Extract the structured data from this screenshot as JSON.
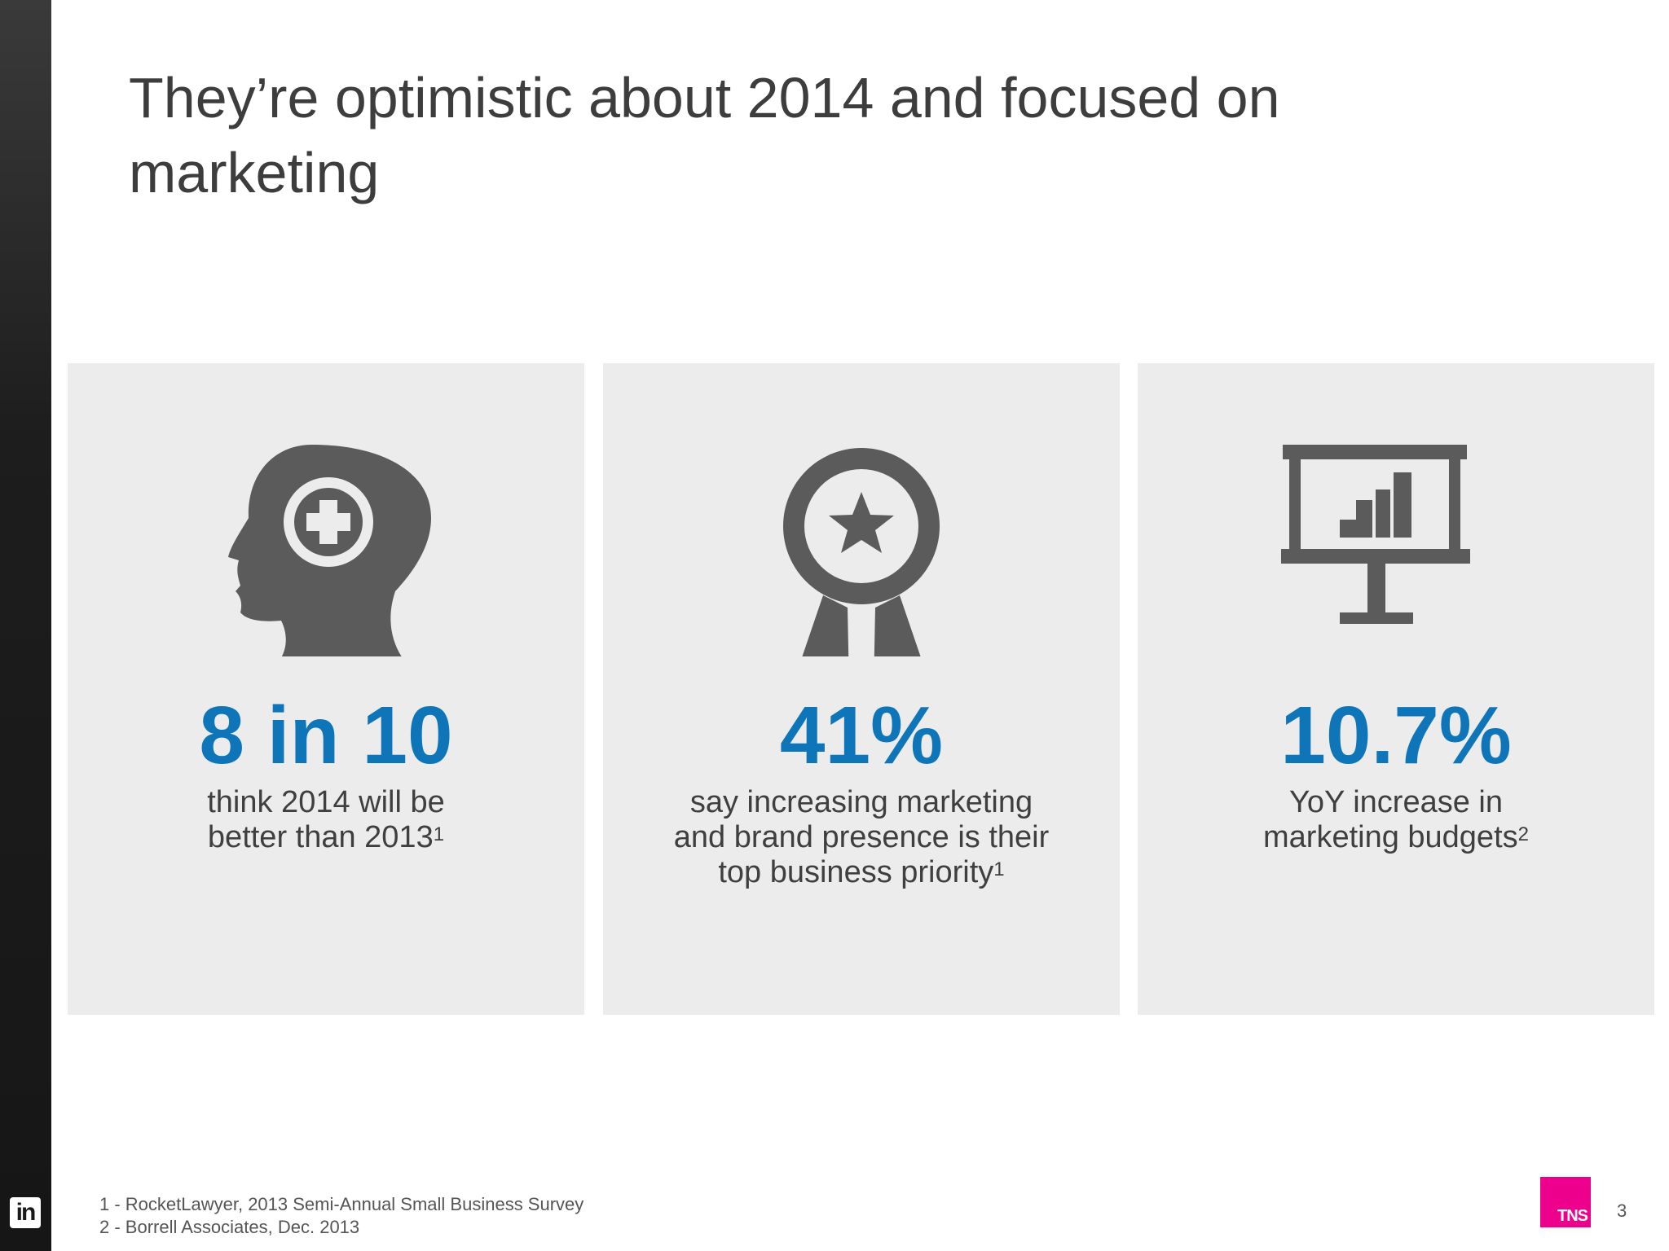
{
  "slide": {
    "title": "They’re optimistic about 2014 and focused on marketing",
    "page_number": "3"
  },
  "panels": [
    {
      "icon": "head-plus-icon",
      "stat": "8 in 10",
      "desc_lines": [
        "think 2014 will be",
        "better than 2013"
      ],
      "footnote_ref": "1"
    },
    {
      "icon": "award-ribbon-icon",
      "stat": "41%",
      "desc_lines": [
        "say increasing marketing",
        "and brand presence is their",
        "top business priority"
      ],
      "footnote_ref": "1"
    },
    {
      "icon": "presentation-chart-icon",
      "stat": "10.7%",
      "desc_lines": [
        "YoY increase in",
        "marketing budgets"
      ],
      "footnote_ref": "2"
    }
  ],
  "footnotes": [
    "1 - RocketLawyer, 2013 Semi-Annual Small Business Survey",
    "2 - Borrell Associates, Dec. 2013"
  ],
  "logos": {
    "sidebar_logo_text": "in",
    "brand_logo_text": "TNS",
    "brand_color": "#ec008c"
  },
  "colors": {
    "stat": "#0e75b9",
    "panel_bg": "#ececed",
    "icon": "#5b5b5b"
  }
}
